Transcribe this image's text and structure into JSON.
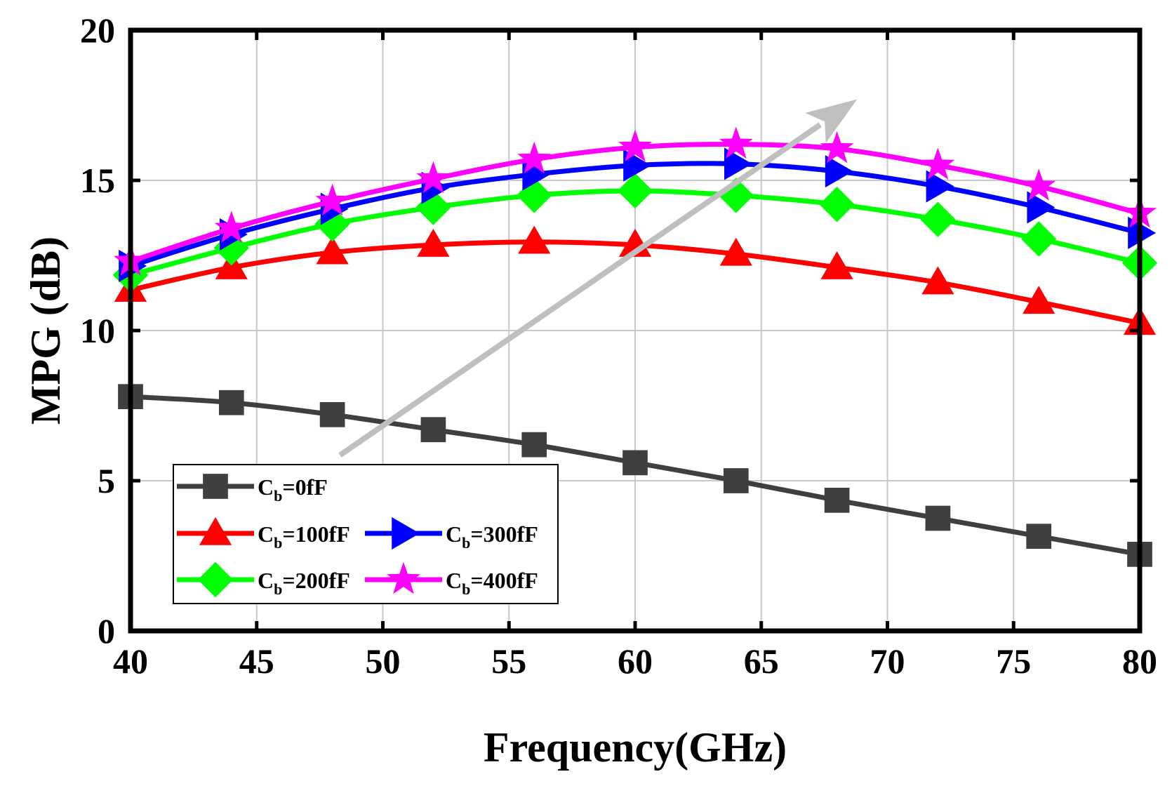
{
  "chart_data": {
    "type": "line",
    "title": "",
    "xlabel": "Frequency(GHz)",
    "ylabel": "MPG (dB)",
    "xlim": [
      40,
      80
    ],
    "ylim": [
      0,
      20
    ],
    "x_ticks": [
      40,
      45,
      50,
      55,
      60,
      65,
      70,
      75,
      80
    ],
    "y_ticks": [
      0,
      5,
      10,
      15,
      20
    ],
    "grid": true,
    "legend_position": "bottom-left",
    "x": [
      40,
      44,
      48,
      52,
      56,
      60,
      64,
      68,
      72,
      76,
      80
    ],
    "series": [
      {
        "name": "0fF",
        "color": "#3f3f3f",
        "marker": "square",
        "values": [
          7.8,
          7.6,
          7.2,
          6.7,
          6.2,
          5.6,
          5.0,
          4.35,
          3.75,
          3.15,
          2.55
        ]
      },
      {
        "name": "100fF",
        "color": "#ff0000",
        "marker": "triangle-up",
        "values": [
          11.35,
          12.1,
          12.6,
          12.85,
          12.95,
          12.85,
          12.55,
          12.1,
          11.6,
          10.95,
          10.25
        ]
      },
      {
        "name": "200fF",
        "color": "#00ff00",
        "marker": "diamond",
        "values": [
          11.85,
          12.75,
          13.55,
          14.1,
          14.5,
          14.65,
          14.5,
          14.2,
          13.7,
          13.05,
          12.25
        ]
      },
      {
        "name": "300fF",
        "color": "#0000ff",
        "marker": "triangle-right",
        "values": [
          12.15,
          13.2,
          14.05,
          14.75,
          15.2,
          15.5,
          15.55,
          15.3,
          14.8,
          14.1,
          13.25
        ]
      },
      {
        "name": "400fF",
        "color": "#ff00ff",
        "marker": "star",
        "values": [
          12.3,
          13.4,
          14.3,
          15.05,
          15.7,
          16.1,
          16.2,
          16.05,
          15.5,
          14.8,
          13.9
        ]
      }
    ],
    "legend_prefix": "C",
    "legend_subscript": "b",
    "legend_equals": "=",
    "annotation": {
      "type": "arrow",
      "color": "#bfbfbf",
      "from": [
        48.3,
        5.85
      ],
      "to": [
        68.8,
        17.7
      ]
    }
  }
}
